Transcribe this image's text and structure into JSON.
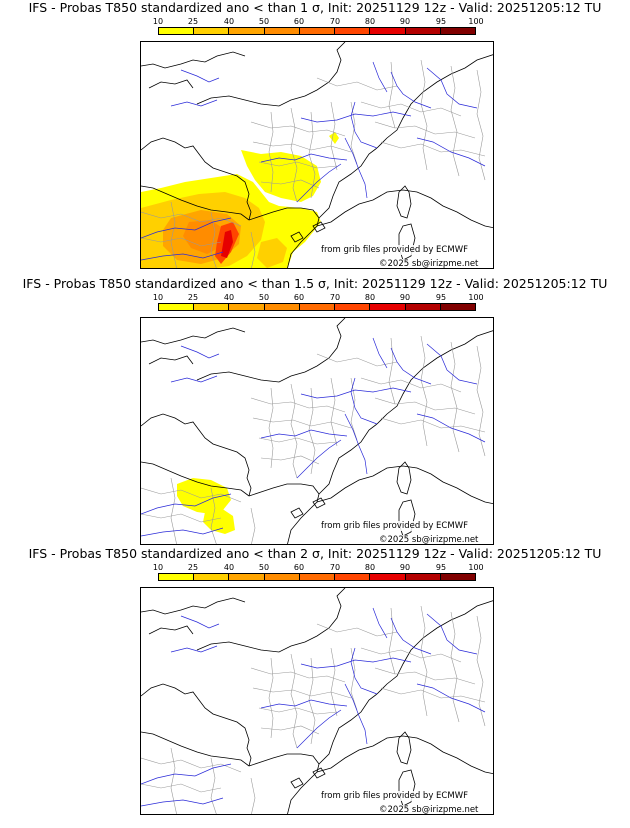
{
  "colorbar": {
    "ticks": [
      "10",
      "25",
      "40",
      "50",
      "60",
      "70",
      "80",
      "90",
      "95",
      "100"
    ],
    "colors": [
      "#ffff00",
      "#ffd000",
      "#ffa500",
      "#ff8c00",
      "#ff6a00",
      "#ff4500",
      "#e60000",
      "#b30000",
      "#800000"
    ]
  },
  "panels": [
    {
      "title": "IFS - Probas T850  standardized ano < than 1 σ, Init: 20251129 12z - Valid: 20251205:12 TU",
      "source": "from grib files provided by ECMWF",
      "copyright": "©2025 sb@irizpme.net",
      "anomaly_regions": [
        "Iberia (north/central)",
        "SW France (Aquitaine/Occitanie)",
        "small patch near Switzerland"
      ]
    },
    {
      "title": "IFS - Probas T850  standardized ano < than 1.5 σ, Init: 20251129 12z - Valid: 20251205:12 TU",
      "source": "from grib files provided by ECMWF",
      "copyright": "©2025 sb@irizpme.net",
      "anomaly_regions": [
        "northern Spain"
      ]
    },
    {
      "title": "IFS - Probas T850  standardized ano < than 2 σ, Init: 20251129 12z - Valid: 20251205:12 TU",
      "source": "from grib files provided by ECMWF",
      "copyright": "©2025 sb@irizpme.net",
      "anomaly_regions": []
    }
  ]
}
